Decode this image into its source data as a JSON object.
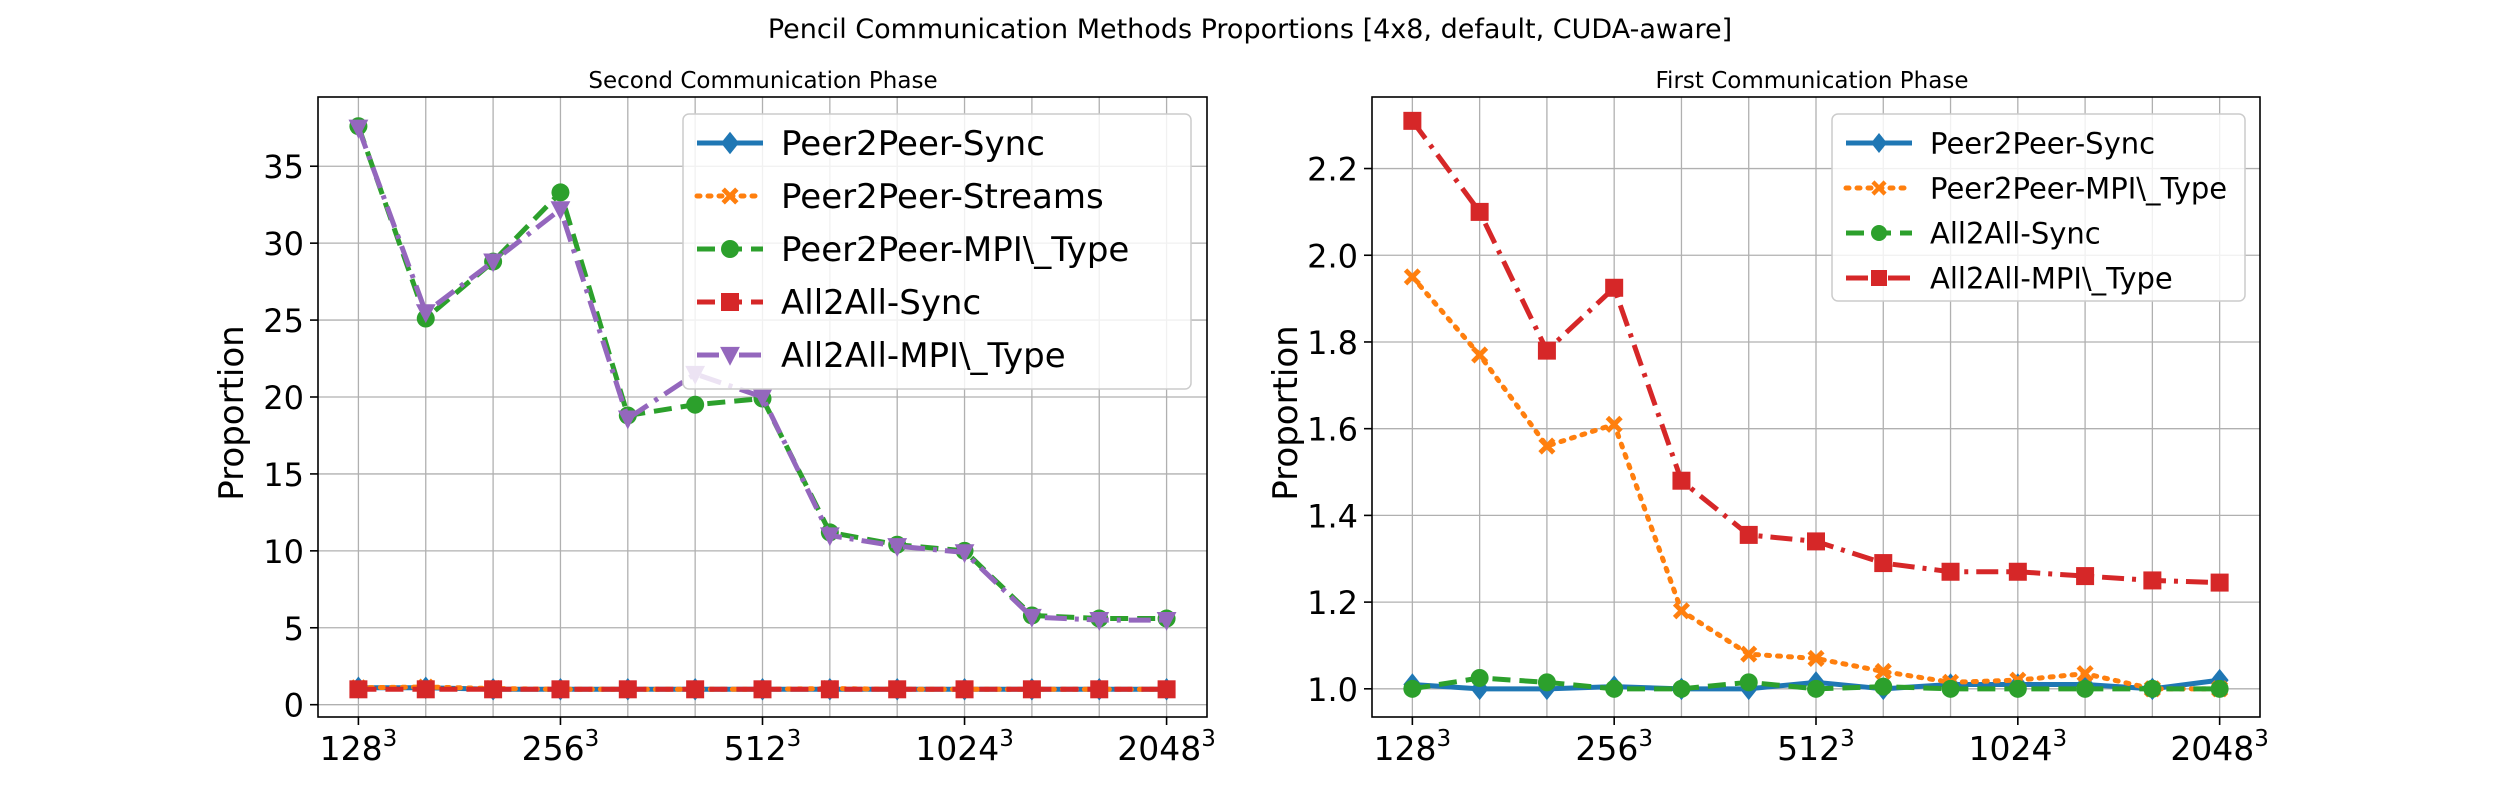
{
  "figure": {
    "title": "Pencil Communication Methods Proportions [4x8, default, CUDA-aware]"
  },
  "chart_data": [
    {
      "type": "line",
      "title": "Second Communication Phase",
      "xlabel": "",
      "ylabel": "Proportion",
      "x": [
        0,
        1,
        2,
        3,
        4,
        5,
        6,
        7,
        8,
        9,
        10,
        11,
        12
      ],
      "x_tick_positions": [
        0,
        3,
        6,
        9,
        12
      ],
      "x_tick_labels": [
        {
          "base": "128",
          "exp": "3"
        },
        {
          "base": "256",
          "exp": "3"
        },
        {
          "base": "512",
          "exp": "3"
        },
        {
          "base": "1024",
          "exp": "3"
        },
        {
          "base": "2048",
          "exp": "3"
        }
      ],
      "ylim": [
        -0.8,
        39.5
      ],
      "yticks": [
        0,
        5,
        10,
        15,
        20,
        25,
        30,
        35
      ],
      "grid": true,
      "legend_position": "top-right",
      "series": [
        {
          "name": "Peer2Peer-Sync",
          "color": "#1f77b4",
          "dash": "solid",
          "marker": "diamond",
          "values": [
            1.1,
            1.1,
            1.0,
            1.0,
            1.0,
            1.0,
            1.0,
            1.0,
            1.0,
            1.0,
            1.0,
            1.0,
            1.0
          ]
        },
        {
          "name": "Peer2Peer-Streams",
          "color": "#ff7f0e",
          "dash": "dotted",
          "marker": "x",
          "values": [
            1.1,
            1.15,
            1.05,
            1.0,
            1.0,
            1.0,
            1.0,
            1.05,
            1.0,
            1.0,
            1.0,
            1.0,
            1.0
          ]
        },
        {
          "name": "Peer2Peer-MPI\\_Type",
          "color": "#2ca02c",
          "dash": "dashed",
          "marker": "circle",
          "values": [
            37.6,
            25.1,
            28.8,
            33.3,
            18.8,
            19.5,
            19.9,
            11.2,
            10.4,
            10.0,
            5.8,
            5.6,
            5.6
          ]
        },
        {
          "name": "All2All-Sync",
          "color": "#d62728",
          "dash": "dashed",
          "marker": "square",
          "values": [
            1.0,
            1.0,
            1.0,
            1.0,
            1.0,
            1.0,
            1.0,
            1.0,
            1.0,
            1.0,
            1.0,
            1.0,
            1.0
          ]
        },
        {
          "name": "All2All-MPI\\_Type",
          "color": "#9467bd",
          "dash": "dashdot",
          "marker": "triangle-down",
          "values": [
            37.5,
            25.5,
            28.8,
            32.2,
            18.6,
            21.5,
            20.0,
            11.0,
            10.3,
            9.9,
            5.7,
            5.5,
            5.5
          ]
        }
      ]
    },
    {
      "type": "line",
      "title": "First Communication Phase",
      "xlabel": "",
      "ylabel": "Proportion",
      "x": [
        0,
        1,
        2,
        3,
        4,
        5,
        6,
        7,
        8,
        9,
        10,
        11,
        12
      ],
      "x_tick_positions": [
        0,
        3,
        6,
        9,
        12
      ],
      "x_tick_labels": [
        {
          "base": "128",
          "exp": "3"
        },
        {
          "base": "256",
          "exp": "3"
        },
        {
          "base": "512",
          "exp": "3"
        },
        {
          "base": "1024",
          "exp": "3"
        },
        {
          "base": "2048",
          "exp": "3"
        }
      ],
      "ylim": [
        0.935,
        2.365
      ],
      "yticks": [
        1.0,
        1.2,
        1.4,
        1.6,
        1.8,
        2.0,
        2.2
      ],
      "grid": true,
      "legend_position": "top-right",
      "series": [
        {
          "name": "Peer2Peer-Sync",
          "color": "#1f77b4",
          "dash": "solid",
          "marker": "diamond",
          "values": [
            1.01,
            1.0,
            1.0,
            1.005,
            1.0,
            1.0,
            1.015,
            1.0,
            1.01,
            1.01,
            1.01,
            1.0,
            1.02
          ]
        },
        {
          "name": "Peer2Peer-MPI\\_Type",
          "color": "#ff7f0e",
          "dash": "dotted",
          "marker": "x",
          "values": [
            1.95,
            1.77,
            1.56,
            1.61,
            1.18,
            1.08,
            1.07,
            1.04,
            1.015,
            1.02,
            1.035,
            1.0,
            1.0
          ]
        },
        {
          "name": "All2All-Sync",
          "color": "#2ca02c",
          "dash": "dashed",
          "marker": "circle",
          "values": [
            1.0,
            1.025,
            1.015,
            1.0,
            1.0,
            1.015,
            1.0,
            1.005,
            1.0,
            1.0,
            1.0,
            1.0,
            1.0
          ]
        },
        {
          "name": "All2All-MPI\\_Type",
          "color": "#d62728",
          "dash": "dashdot",
          "marker": "square",
          "values": [
            2.31,
            2.1,
            1.78,
            1.925,
            1.48,
            1.355,
            1.34,
            1.29,
            1.27,
            1.27,
            1.26,
            1.25,
            1.245
          ]
        }
      ]
    }
  ]
}
